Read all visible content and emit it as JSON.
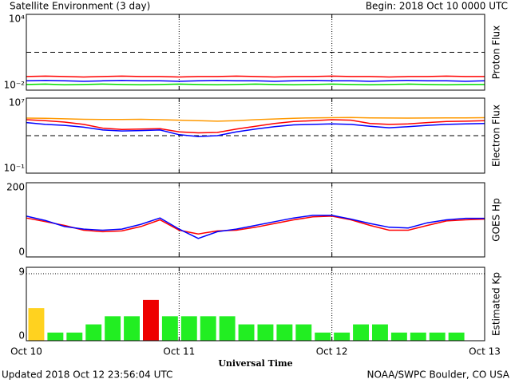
{
  "header": {
    "title": "Satellite Environment (3 day)",
    "begin": "Begin:  2018 Oct 10 0000 UTC"
  },
  "footer": {
    "updated": "Updated 2018 Oct 12 23:56:04 UTC",
    "credit": "NOAA/SWPC Boulder, CO USA"
  },
  "xaxis": {
    "xlim": [
      0,
      72
    ],
    "xticks": [
      {
        "value": 0,
        "label": "Oct 10"
      },
      {
        "value": 24,
        "label": "Oct 11"
      },
      {
        "value": 48,
        "label": "Oct 12"
      },
      {
        "value": 72,
        "label": "Oct 13"
      }
    ],
    "xlabel": "Universal Time"
  },
  "chart_data": [
    {
      "type": "line",
      "ylabel": "Proton Flux",
      "log_scale": true,
      "ylim": [
        0.01,
        10000
      ],
      "yticks": [
        {
          "value": 10000,
          "label": "10⁴"
        },
        {
          "value": 0.01,
          "label": "10⁻²"
        }
      ],
      "threshold": 10,
      "x": [
        0,
        3,
        6,
        9,
        12,
        15,
        18,
        21,
        24,
        27,
        30,
        33,
        36,
        39,
        42,
        45,
        48,
        51,
        54,
        57,
        60,
        63,
        66,
        69,
        72
      ],
      "series": [
        {
          "name": "red",
          "color": "#ff0000",
          "values": [
            0.12,
            0.13,
            0.12,
            0.11,
            0.12,
            0.13,
            0.12,
            0.12,
            0.11,
            0.12,
            0.12,
            0.13,
            0.12,
            0.11,
            0.12,
            0.12,
            0.13,
            0.12,
            0.12,
            0.11,
            0.12,
            0.12,
            0.13,
            0.12,
            0.12
          ]
        },
        {
          "name": "blue",
          "color": "#0000ff",
          "values": [
            0.055,
            0.06,
            0.055,
            0.05,
            0.055,
            0.06,
            0.055,
            0.055,
            0.05,
            0.055,
            0.06,
            0.055,
            0.055,
            0.05,
            0.055,
            0.06,
            0.055,
            0.055,
            0.05,
            0.055,
            0.06,
            0.055,
            0.055,
            0.05,
            0.055
          ]
        },
        {
          "name": "green",
          "color": "#00dd00",
          "values": [
            0.028,
            0.03,
            0.027,
            0.028,
            0.03,
            0.028,
            0.027,
            0.028,
            0.03,
            0.028,
            0.027,
            0.028,
            0.03,
            0.028,
            0.027,
            0.028,
            0.03,
            0.028,
            0.027,
            0.028,
            0.03,
            0.028,
            0.027,
            0.028,
            0.028
          ]
        }
      ]
    },
    {
      "type": "line",
      "ylabel": "Electron Flux",
      "log_scale": true,
      "ylim": [
        0.1,
        10000000
      ],
      "yticks": [
        {
          "value": 10000000,
          "label": "10⁷"
        },
        {
          "value": 0.1,
          "label": "10⁻¹"
        }
      ],
      "threshold": 1000,
      "x": [
        0,
        3,
        6,
        9,
        12,
        15,
        18,
        21,
        24,
        27,
        30,
        33,
        36,
        39,
        42,
        45,
        48,
        51,
        54,
        57,
        60,
        63,
        66,
        69,
        72
      ],
      "series": [
        {
          "name": "orange",
          "color": "#ff9900",
          "values": [
            74000,
            71000,
            63000,
            56000,
            52000,
            52000,
            56000,
            50000,
            45000,
            40000,
            35000,
            40000,
            50000,
            60000,
            71000,
            79000,
            83000,
            85000,
            79000,
            76000,
            74000,
            76000,
            79000,
            79000,
            83000
          ]
        },
        {
          "name": "red",
          "color": "#ff0000",
          "values": [
            50000,
            40000,
            28000,
            16000,
            6300,
            4500,
            5000,
            5600,
            2500,
            2000,
            2200,
            5000,
            10000,
            20000,
            32000,
            40000,
            50000,
            45000,
            20000,
            16000,
            18000,
            25000,
            32000,
            35000,
            40000
          ]
        },
        {
          "name": "blue",
          "color": "#0000ff",
          "values": [
            25000,
            16000,
            12600,
            8000,
            4000,
            3200,
            3500,
            4000,
            1260,
            800,
            1000,
            2500,
            5000,
            9000,
            14000,
            16000,
            18000,
            16000,
            10000,
            7000,
            9000,
            12600,
            16000,
            18000,
            20000
          ]
        }
      ]
    },
    {
      "type": "line",
      "ylabel": "GOES Hp",
      "log_scale": false,
      "ylim": [
        0,
        200
      ],
      "yticks": [
        200,
        0
      ],
      "x": [
        0,
        3,
        6,
        9,
        12,
        15,
        18,
        21,
        24,
        27,
        30,
        33,
        36,
        39,
        42,
        45,
        48,
        51,
        54,
        57,
        60,
        63,
        66,
        69,
        72
      ],
      "series": [
        {
          "name": "red",
          "color": "#ff0000",
          "values": [
            105,
            95,
            85,
            72,
            68,
            70,
            82,
            100,
            72,
            62,
            70,
            72,
            80,
            90,
            100,
            108,
            110,
            100,
            85,
            72,
            72,
            85,
            97,
            100,
            102
          ]
        },
        {
          "name": "blue",
          "color": "#0000ff",
          "values": [
            110,
            98,
            82,
            75,
            72,
            75,
            88,
            105,
            75,
            50,
            68,
            75,
            85,
            95,
            105,
            112,
            112,
            102,
            90,
            80,
            78,
            92,
            100,
            104,
            104
          ]
        }
      ]
    },
    {
      "type": "bar",
      "ylabel": "Estimated Kp",
      "ylim": [
        0,
        9
      ],
      "yticks": [
        9,
        0
      ],
      "values": [
        4,
        1,
        1,
        2,
        3,
        3,
        5,
        3,
        3,
        3,
        3,
        2,
        2,
        2,
        2,
        1,
        1,
        2,
        2,
        1,
        1,
        1,
        1,
        null
      ],
      "colors": [
        "#ffd21f",
        "#22ee22",
        "#22ee22",
        "#22ee22",
        "#22ee22",
        "#22ee22",
        "#ee0000",
        "#22ee22",
        "#22ee22",
        "#22ee22",
        "#22ee22",
        "#22ee22",
        "#22ee22",
        "#22ee22",
        "#22ee22",
        "#22ee22",
        "#22ee22",
        "#22ee22",
        "#22ee22",
        "#22ee22",
        "#22ee22",
        "#22ee22",
        "#22ee22",
        "#22ee22"
      ]
    }
  ]
}
